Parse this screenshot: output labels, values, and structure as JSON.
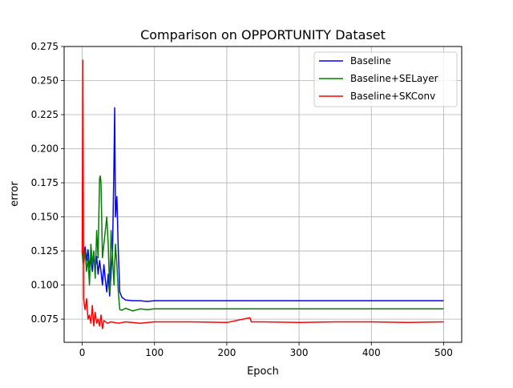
{
  "chart_data": {
    "type": "line",
    "title": "Comparison on OPPORTUNITY Dataset",
    "xlabel": "Epoch",
    "ylabel": "error",
    "xlim": [
      -25,
      525
    ],
    "ylim": [
      0.058,
      0.275
    ],
    "xticks": [
      0,
      100,
      200,
      300,
      400,
      500
    ],
    "xtick_labels": [
      "0",
      "100",
      "200",
      "300",
      "400",
      "500"
    ],
    "yticks": [
      0.075,
      0.1,
      0.125,
      0.15,
      0.175,
      0.2,
      0.225,
      0.25,
      0.275
    ],
    "ytick_labels": [
      "0.075",
      "0.100",
      "0.125",
      "0.150",
      "0.175",
      "0.200",
      "0.225",
      "0.250",
      "0.275"
    ],
    "grid": true,
    "legend_position": "top-right",
    "series": [
      {
        "name": "Baseline",
        "color": "#0000ff",
        "x": [
          0,
          2,
          4,
          6,
          8,
          10,
          12,
          14,
          16,
          18,
          20,
          22,
          24,
          26,
          28,
          30,
          32,
          34,
          36,
          38,
          40,
          42,
          44,
          45,
          46,
          48,
          50,
          52,
          55,
          60,
          70,
          80,
          90,
          100,
          150,
          200,
          250,
          300,
          350,
          400,
          450,
          500
        ],
        "y": [
          0.125,
          0.122,
          0.128,
          0.118,
          0.126,
          0.113,
          0.12,
          0.11,
          0.124,
          0.112,
          0.121,
          0.108,
          0.118,
          0.11,
          0.1,
          0.115,
          0.104,
          0.095,
          0.108,
          0.092,
          0.11,
          0.125,
          0.19,
          0.23,
          0.15,
          0.165,
          0.125,
          0.095,
          0.091,
          0.089,
          0.0885,
          0.0885,
          0.088,
          0.0885,
          0.0885,
          0.0885,
          0.0885,
          0.0885,
          0.0885,
          0.0885,
          0.0885,
          0.0885
        ]
      },
      {
        "name": "Baseline+SELayer",
        "color": "#008000",
        "x": [
          0,
          2,
          4,
          6,
          8,
          10,
          12,
          14,
          16,
          18,
          20,
          22,
          24,
          25,
          26,
          28,
          30,
          32,
          34,
          36,
          38,
          40,
          42,
          44,
          46,
          48,
          50,
          52,
          55,
          60,
          70,
          80,
          90,
          100,
          150,
          200,
          250,
          300,
          350,
          400,
          450,
          500
        ],
        "y": [
          0.123,
          0.115,
          0.125,
          0.11,
          0.12,
          0.1,
          0.13,
          0.115,
          0.125,
          0.105,
          0.14,
          0.12,
          0.178,
          0.18,
          0.175,
          0.12,
          0.13,
          0.14,
          0.15,
          0.13,
          0.095,
          0.14,
          0.12,
          0.1,
          0.13,
          0.115,
          0.095,
          0.082,
          0.0815,
          0.083,
          0.081,
          0.0825,
          0.082,
          0.0825,
          0.0825,
          0.0825,
          0.0825,
          0.0825,
          0.0825,
          0.0825,
          0.0825,
          0.0825
        ]
      },
      {
        "name": "Baseline+SKConv",
        "color": "#ff0000",
        "x": [
          0,
          1,
          2,
          3,
          4,
          6,
          8,
          10,
          12,
          14,
          16,
          18,
          20,
          22,
          24,
          26,
          28,
          30,
          35,
          40,
          50,
          60,
          80,
          100,
          150,
          200,
          232,
          234,
          250,
          300,
          350,
          400,
          450,
          500
        ],
        "y": [
          0.123,
          0.265,
          0.09,
          0.085,
          0.082,
          0.09,
          0.075,
          0.078,
          0.072,
          0.085,
          0.07,
          0.08,
          0.072,
          0.075,
          0.07,
          0.078,
          0.068,
          0.074,
          0.072,
          0.073,
          0.072,
          0.073,
          0.072,
          0.073,
          0.073,
          0.0725,
          0.076,
          0.073,
          0.073,
          0.0725,
          0.073,
          0.073,
          0.0725,
          0.073
        ]
      }
    ]
  }
}
